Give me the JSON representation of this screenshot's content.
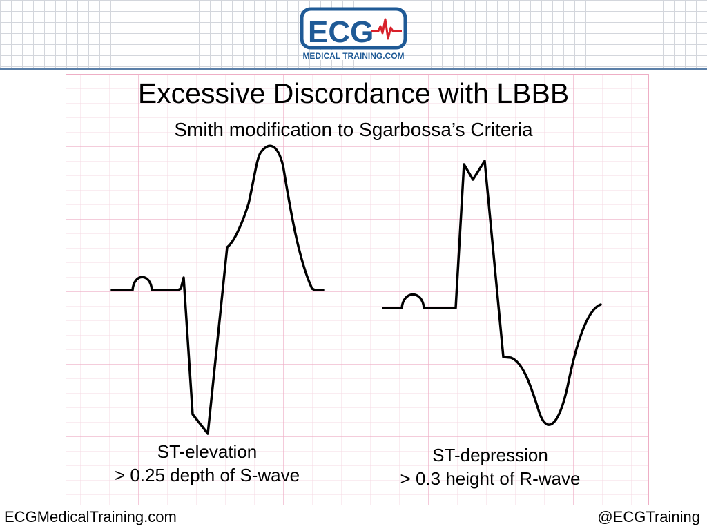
{
  "logo": {
    "main_text": "ECG",
    "subtext": "MEDICAL TRAINING.COM"
  },
  "slide": {
    "title": "Excessive Discordance with LBBB",
    "subtitle": "Smith modification to Sgarbossa’s Criteria"
  },
  "panels": {
    "left": {
      "line1": "ST-elevation",
      "line2": "> 0.25 depth of S-wave"
    },
    "right": {
      "line1": "ST-depression",
      "line2": "> 0.3 height of R-wave"
    }
  },
  "footer": {
    "left": "ECGMedicalTraining.com",
    "right": "@ECGTraining"
  },
  "colors": {
    "grid_minor": "#f5d9e3",
    "grid_major": "#eeaec5",
    "header_rule": "#5b7fa8",
    "logo_blue": "#1f5a96",
    "logo_red": "#d8202a",
    "waveform": "#000000"
  }
}
